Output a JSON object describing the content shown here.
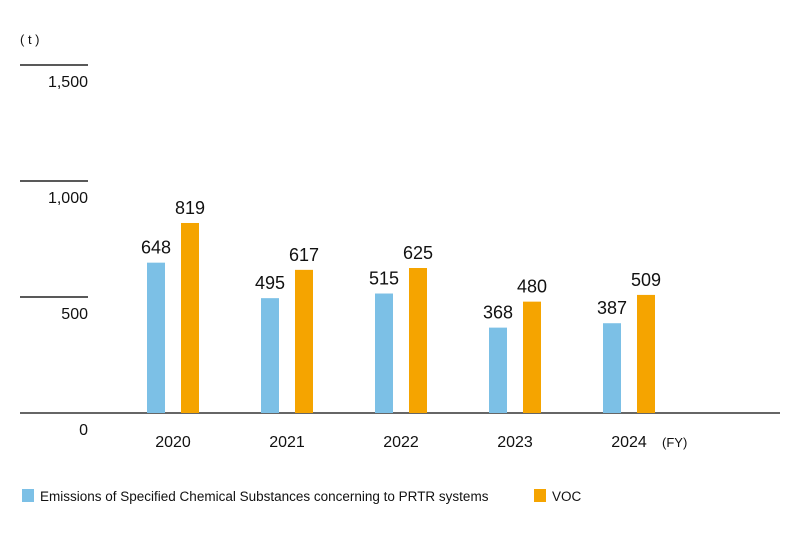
{
  "chart_data": {
    "type": "bar",
    "unit_label": "( t )",
    "x_unit_label": "(FY)",
    "categories": [
      "2020",
      "2021",
      "2022",
      "2023",
      "2024"
    ],
    "series": [
      {
        "name": "Emissions of Specified Chemical Substances concerning to PRTR systems",
        "color": "#7cc0e6",
        "values": [
          648,
          495,
          515,
          368,
          387
        ]
      },
      {
        "name": "VOC",
        "color": "#f5a400",
        "values": [
          819,
          617,
          625,
          480,
          509
        ]
      }
    ],
    "ylim": [
      0,
      1500
    ],
    "yticks": [
      0,
      500,
      1000,
      1500
    ],
    "ytick_labels": [
      "0",
      "500",
      "1,000",
      "1,500"
    ],
    "grid": false,
    "data_labels": true,
    "legend_position": "bottom-left"
  }
}
